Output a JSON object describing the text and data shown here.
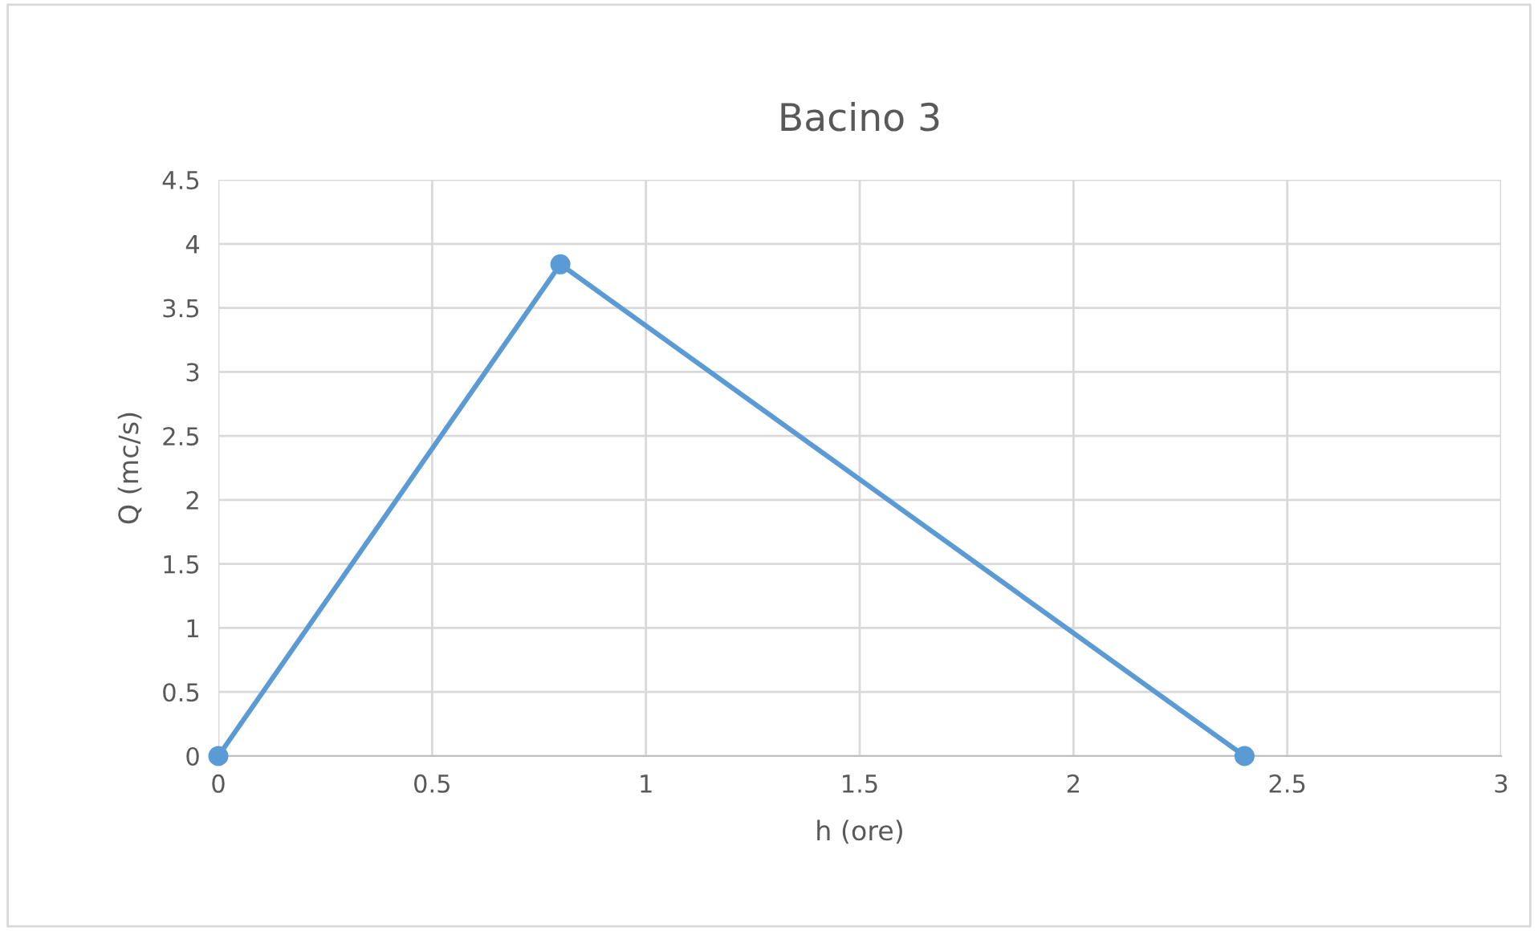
{
  "chart_data": {
    "type": "line",
    "title": "Bacino 3",
    "xlabel": "h (ore)",
    "ylabel": "Q (mc/s)",
    "series": [
      {
        "color": "#5b9bd5",
        "x": [
          0,
          0.8,
          2.4
        ],
        "values": [
          0,
          3.84,
          0
        ]
      }
    ],
    "xlim": [
      0,
      3
    ],
    "xticks": [
      0,
      0.5,
      1,
      1.5,
      2,
      2.5,
      3
    ],
    "ylim": [
      0,
      4.5
    ],
    "yticks": [
      0,
      0.5,
      1,
      1.5,
      2,
      2.5,
      3,
      3.5,
      4,
      4.5
    ],
    "grid": true,
    "marker": "circle",
    "line_style": "solid",
    "legend": false
  }
}
